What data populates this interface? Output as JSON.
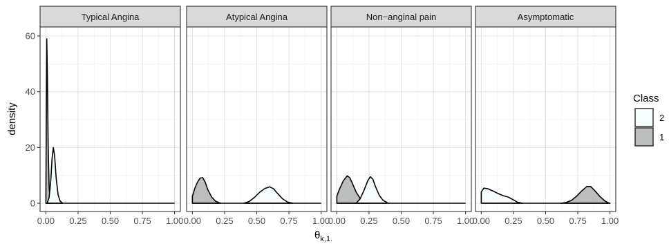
{
  "chart_data": {
    "type": "area",
    "xlabel": "θ",
    "xlabel_subscript": "k,1.",
    "ylabel": "density",
    "xlim": [
      0,
      1
    ],
    "ylim": [
      0,
      62
    ],
    "x_ticks": [
      "0.00",
      "0.25",
      "0.50",
      "0.75",
      "1.00"
    ],
    "y_ticks": [
      "0",
      "20",
      "40",
      "60"
    ],
    "grid": true,
    "legend": {
      "title": "Class",
      "placement": "right",
      "entries": [
        {
          "label": "2",
          "color": "#f5fcfc"
        },
        {
          "label": "1",
          "color": "#bcbebd"
        }
      ]
    },
    "facets": [
      {
        "label": "Typical Angina",
        "series": [
          {
            "class": "1",
            "fill": "#bcbebd",
            "points": [
              [
                0.0,
                0
              ],
              [
                0.003,
                30
              ],
              [
                0.007,
                59
              ],
              [
                0.012,
                45
              ],
              [
                0.018,
                20
              ],
              [
                0.025,
                6
              ],
              [
                0.033,
                1
              ],
              [
                0.045,
                0
              ]
            ]
          },
          {
            "class": "2",
            "fill": "#f5fcfc",
            "points": [
              [
                0.01,
                0
              ],
              [
                0.025,
                2
              ],
              [
                0.038,
                8
              ],
              [
                0.048,
                16
              ],
              [
                0.058,
                20
              ],
              [
                0.068,
                17
              ],
              [
                0.08,
                9
              ],
              [
                0.095,
                3
              ],
              [
                0.11,
                0.8
              ],
              [
                0.13,
                0
              ]
            ]
          }
        ]
      },
      {
        "label": "Atypical Angina",
        "series": [
          {
            "class": "1",
            "fill": "#bcbebd",
            "points": [
              [
                0.0,
                0
              ],
              [
                0.0,
                2.5
              ],
              [
                0.02,
                5.5
              ],
              [
                0.04,
                7.6
              ],
              [
                0.06,
                9.0
              ],
              [
                0.08,
                9.2
              ],
              [
                0.1,
                7.5
              ],
              [
                0.12,
                4.8
              ],
              [
                0.15,
                2.2
              ],
              [
                0.18,
                0.7
              ],
              [
                0.22,
                0
              ]
            ]
          },
          {
            "class": "2",
            "fill": "#f5fcfc",
            "points": [
              [
                0.4,
                0
              ],
              [
                0.44,
                0.6
              ],
              [
                0.48,
                2
              ],
              [
                0.52,
                3.8
              ],
              [
                0.56,
                5.2
              ],
              [
                0.6,
                5.9
              ],
              [
                0.63,
                5.2
              ],
              [
                0.66,
                3.6
              ],
              [
                0.7,
                1.6
              ],
              [
                0.74,
                0.4
              ],
              [
                0.78,
                0
              ]
            ]
          }
        ]
      },
      {
        "label": "Non−anginal pain",
        "series": [
          {
            "class": "1",
            "fill": "#bcbebd",
            "points": [
              [
                0.0,
                0
              ],
              [
                0.0,
                2.5
              ],
              [
                0.02,
                5
              ],
              [
                0.05,
                8
              ],
              [
                0.08,
                9.8
              ],
              [
                0.1,
                9.2
              ],
              [
                0.12,
                7.2
              ],
              [
                0.15,
                4
              ],
              [
                0.18,
                1.8
              ],
              [
                0.21,
                0.5
              ],
              [
                0.24,
                0
              ]
            ]
          },
          {
            "class": "2",
            "fill": "#f5fcfc",
            "points": [
              [
                0.15,
                0
              ],
              [
                0.18,
                1.5
              ],
              [
                0.21,
                4.5
              ],
              [
                0.24,
                8
              ],
              [
                0.26,
                9.5
              ],
              [
                0.28,
                8.6
              ],
              [
                0.3,
                6
              ],
              [
                0.33,
                2.8
              ],
              [
                0.36,
                1
              ],
              [
                0.4,
                0
              ]
            ]
          }
        ]
      },
      {
        "label": "Asymptomatic",
        "series": [
          {
            "class": "2",
            "fill": "#f5fcfc",
            "points": [
              [
                0.0,
                0
              ],
              [
                0.0,
                4
              ],
              [
                0.02,
                5.4
              ],
              [
                0.05,
                5.2
              ],
              [
                0.09,
                4.4
              ],
              [
                0.13,
                3.5
              ],
              [
                0.17,
                2.7
              ],
              [
                0.21,
                2.2
              ],
              [
                0.25,
                1.2
              ],
              [
                0.28,
                0.4
              ],
              [
                0.32,
                0
              ]
            ]
          },
          {
            "class": "1",
            "fill": "#bcbebd",
            "points": [
              [
                0.62,
                0
              ],
              [
                0.66,
                0.3
              ],
              [
                0.7,
                1
              ],
              [
                0.74,
                2.5
              ],
              [
                0.78,
                4.4
              ],
              [
                0.82,
                6
              ],
              [
                0.85,
                6
              ],
              [
                0.88,
                4.6
              ],
              [
                0.92,
                2.5
              ],
              [
                0.96,
                0.8
              ],
              [
                0.99,
                0.1
              ],
              [
                1.0,
                0
              ]
            ]
          }
        ]
      }
    ]
  }
}
